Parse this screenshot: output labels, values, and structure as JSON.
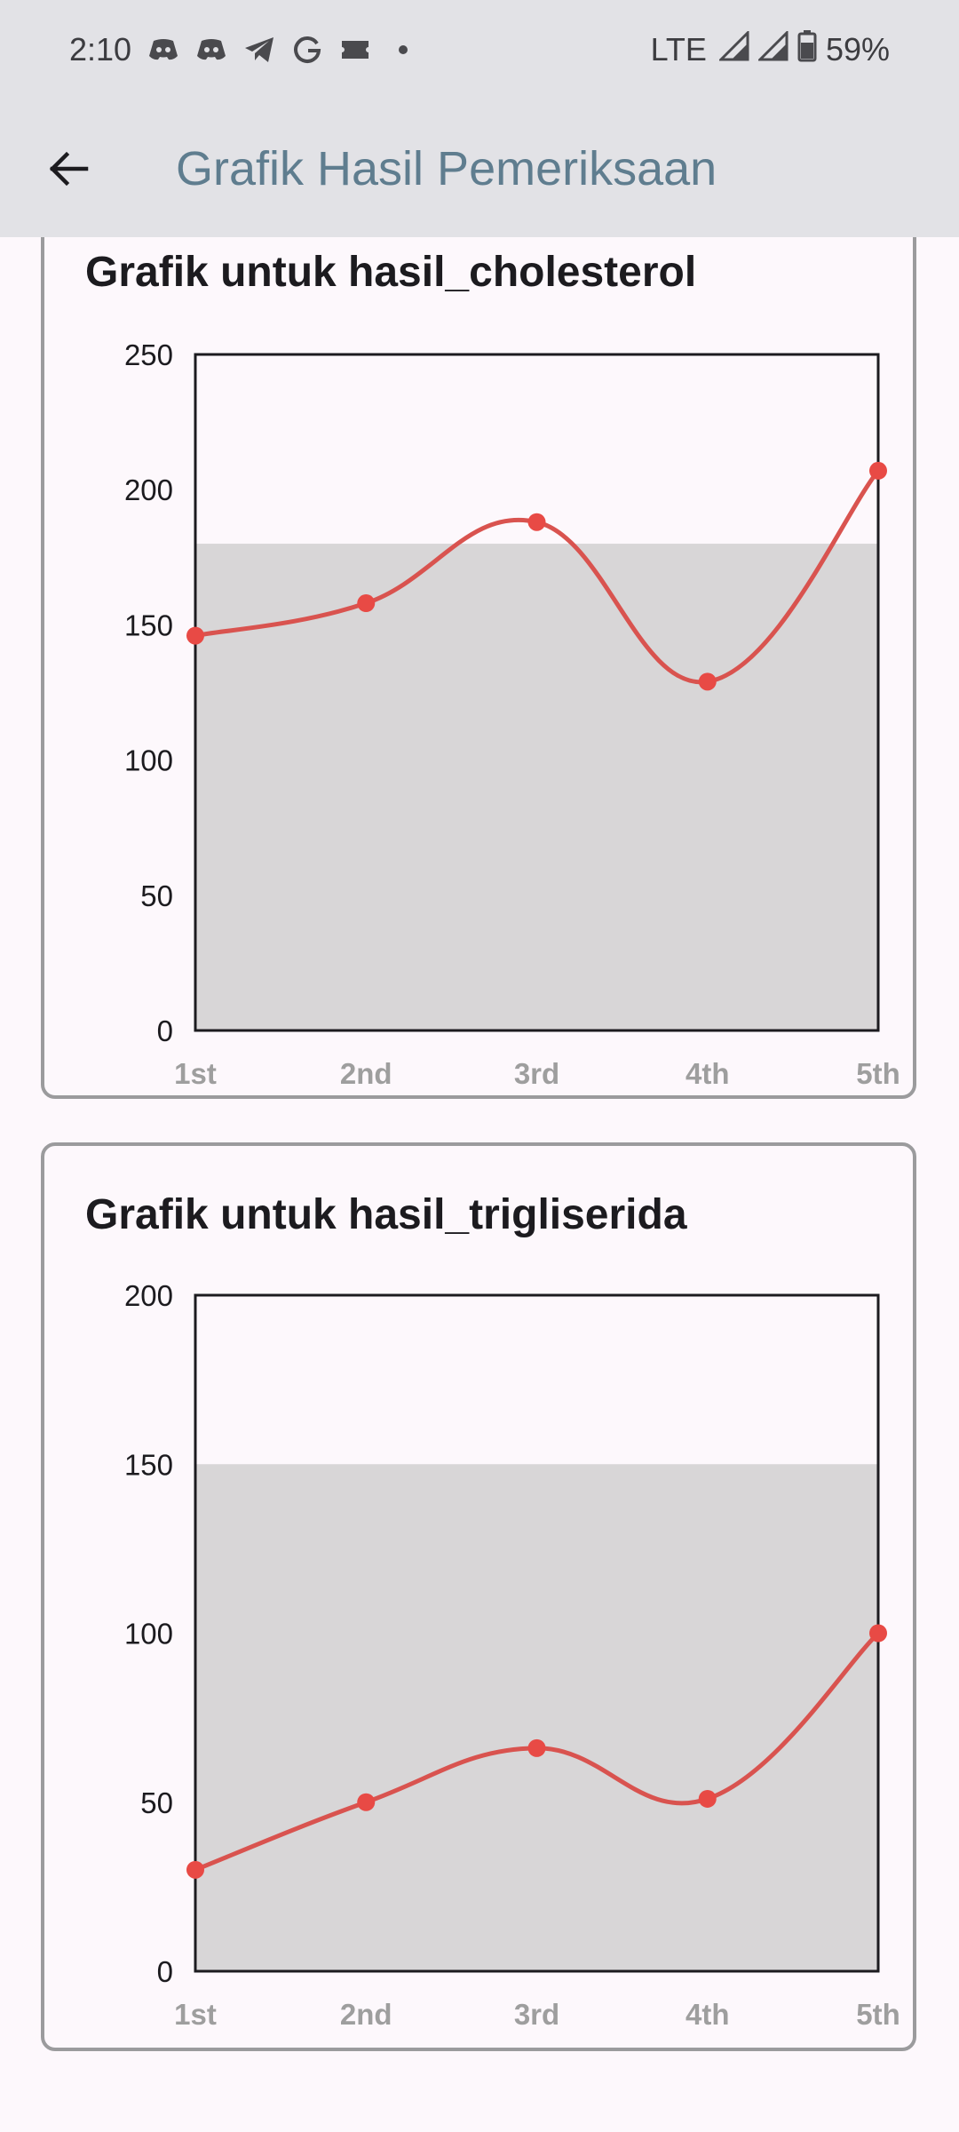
{
  "status_bar": {
    "time": "2:10",
    "network": "LTE",
    "battery": "59%",
    "notification_icons": [
      "discord-icon",
      "discord-icon",
      "telegram-icon",
      "google-icon",
      "ticket-icon",
      "dot-icon"
    ]
  },
  "app_bar": {
    "back_icon": "arrow-left-icon",
    "title": "Grafik Hasil Pemeriksaan"
  },
  "colors": {
    "app_bar_bg": "#e2e2e6",
    "title_color": "#5f7d8f",
    "line_color": "#d9534f",
    "point_color": "#e84a45",
    "range_band": "#d8d6d7",
    "card_border": "#9b9b9d"
  },
  "charts": [
    {
      "title": "Grafik untuk hasil_cholesterol"
    },
    {
      "title": "Grafik untuk hasil_trigliserida"
    }
  ],
  "chart_data": [
    {
      "type": "line",
      "title": "Grafik untuk hasil_cholesterol",
      "categories": [
        "1st",
        "2nd",
        "3rd",
        "4th",
        "5th"
      ],
      "values": [
        146,
        158,
        188,
        129,
        207
      ],
      "ylim": [
        0,
        250
      ],
      "yticks": [
        "0",
        "50",
        "100",
        "150",
        "200",
        "250"
      ],
      "reference_band": [
        0,
        180
      ],
      "xlabel": "",
      "ylabel": "",
      "grid": false
    },
    {
      "type": "line",
      "title": "Grafik untuk hasil_trigliserida",
      "categories": [
        "1st",
        "2nd",
        "3rd",
        "4th",
        "5th"
      ],
      "values": [
        30,
        50,
        66,
        51,
        100
      ],
      "ylim": [
        0,
        200
      ],
      "yticks": [
        "0",
        "50",
        "100",
        "150",
        "200"
      ],
      "reference_band": [
        0,
        150
      ],
      "xlabel": "",
      "ylabel": "",
      "grid": false
    }
  ]
}
